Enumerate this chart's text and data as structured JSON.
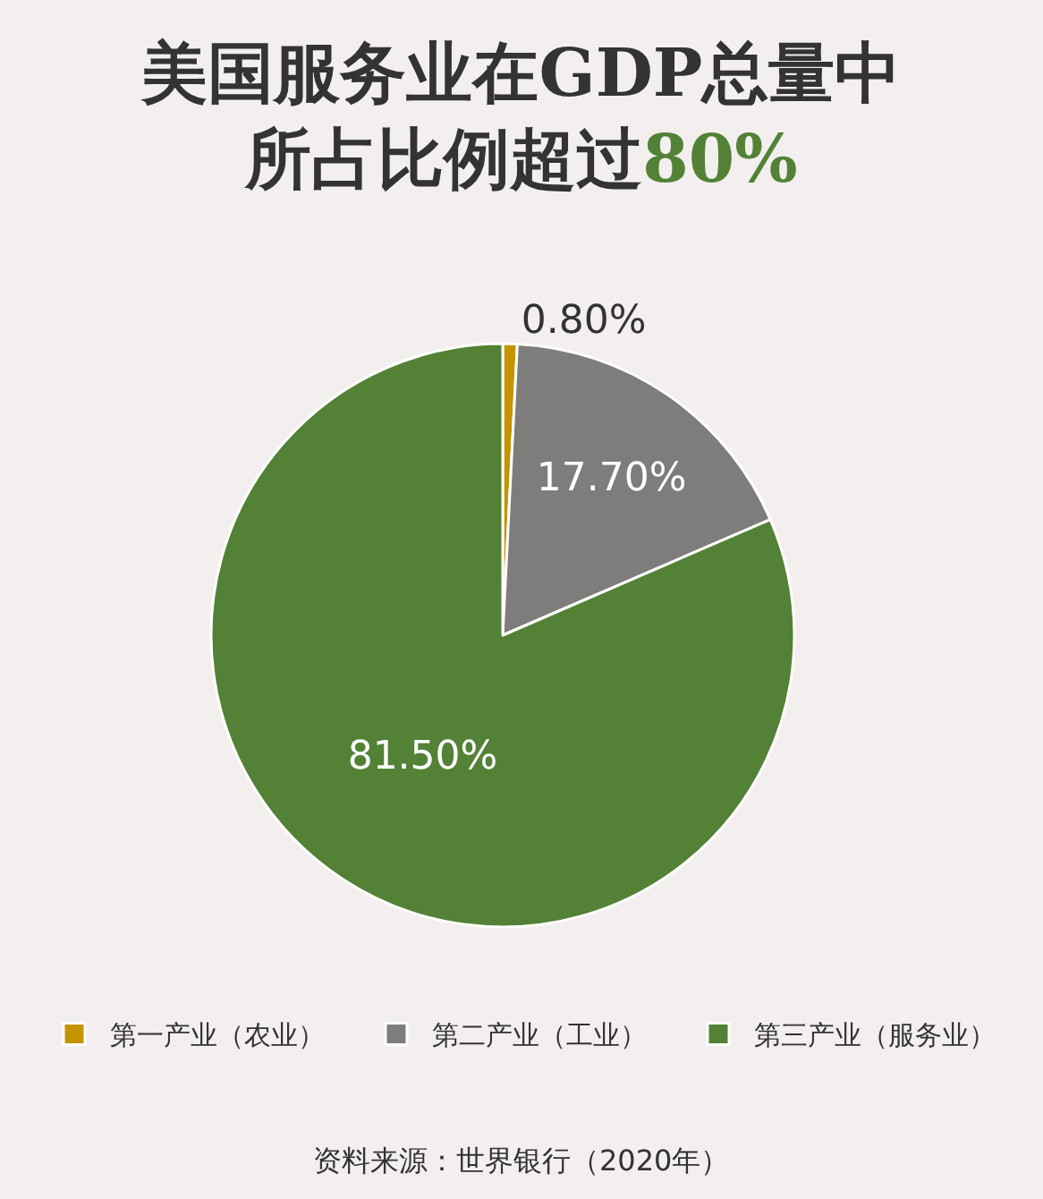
{
  "chart_data": {
    "type": "pie",
    "title": "美国服务业在GDP总量中所占比例超过80%",
    "categories": [
      "第一产业（农业）",
      "第二产业（工业）",
      "第三产业（服务业）"
    ],
    "values": [
      0.8,
      17.7,
      81.5
    ],
    "value_labels": [
      "0.80%",
      "17.70%",
      "81.50%"
    ],
    "colors": [
      "#c49400",
      "#7f7c7c",
      "#538135"
    ],
    "legend": "bottom",
    "annotations": [
      "资料来源：世界银行（2020年）"
    ]
  }
}
